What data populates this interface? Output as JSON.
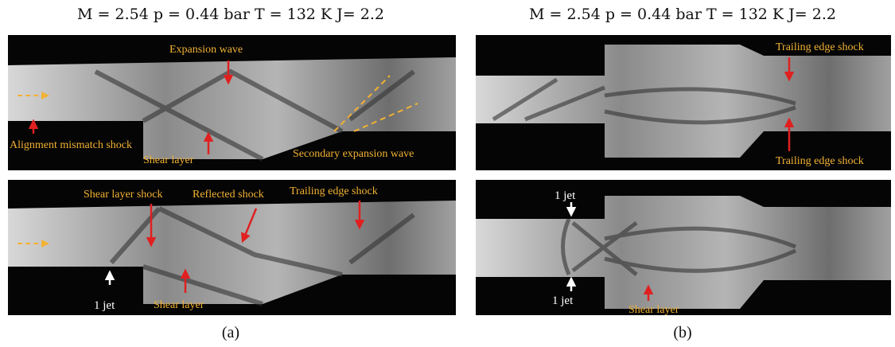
{
  "figure": {
    "columns": [
      {
        "title": "M = 2.54 p = 0.44 bar T = 132 K  J= 2.2",
        "caption": "(a)",
        "panels": [
          {
            "annotations": [
              "Expansion wave",
              "Alignment  mismatch shock",
              "Shear layer",
              "Secondary expansion wave"
            ]
          },
          {
            "annotations": [
              "Shear layer shock",
              "Reflected shock",
              "Trailing edge shock",
              "1 jet",
              "Shear layer"
            ]
          }
        ]
      },
      {
        "title": "M = 2.54 p = 0.44 bar T = 132 K  J= 2.2",
        "caption": "(b)",
        "panels": [
          {
            "annotations": [
              "Trailing edge shock",
              "Trailing edge shock"
            ]
          },
          {
            "annotations": [
              "1 jet",
              "1 jet",
              "Shear layer"
            ]
          }
        ]
      }
    ]
  }
}
